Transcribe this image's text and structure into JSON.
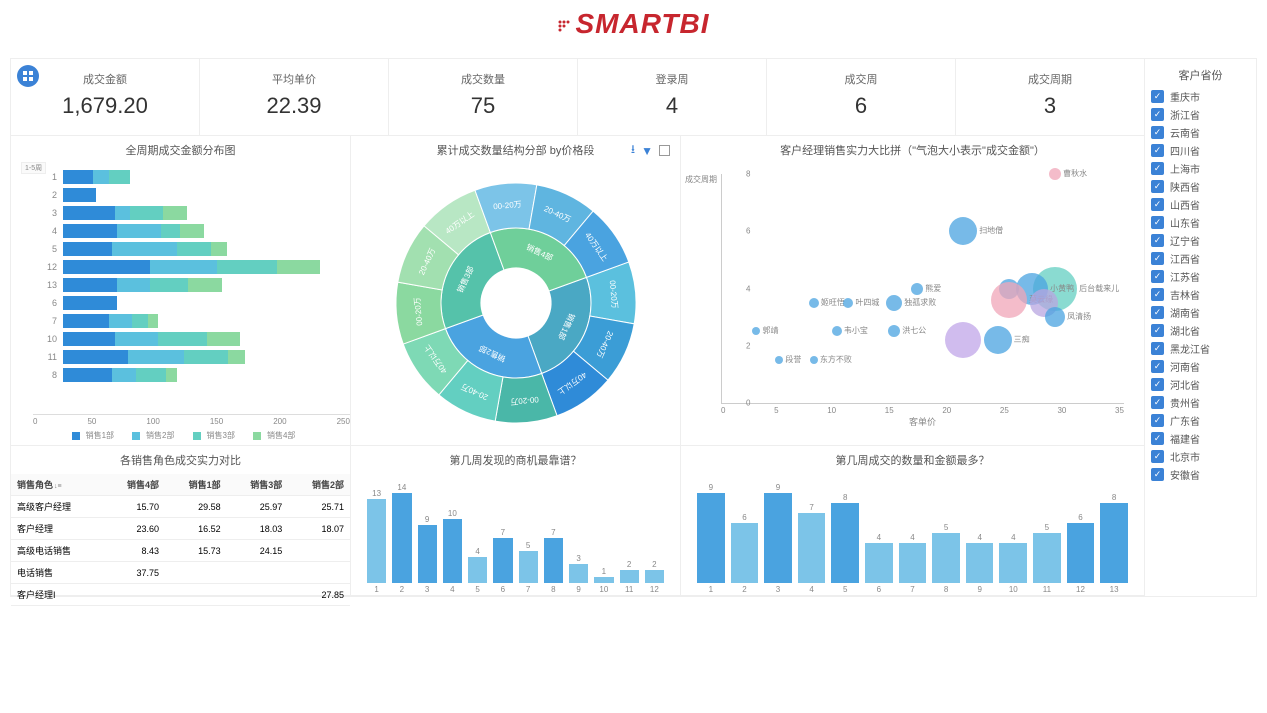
{
  "logo": {
    "text": "SMARTBI",
    "color": "#c7262e"
  },
  "kpis": [
    {
      "label": "成交金额",
      "value": "1,679.20"
    },
    {
      "label": "平均单价",
      "value": "22.39"
    },
    {
      "label": "成交数量",
      "value": "75"
    },
    {
      "label": "登录周",
      "value": "4"
    },
    {
      "label": "成交周",
      "value": "6"
    },
    {
      "label": "成交周期",
      "value": "3"
    }
  ],
  "sidebar": {
    "title": "客户省份",
    "items": [
      "重庆市",
      "浙江省",
      "云南省",
      "四川省",
      "上海市",
      "陕西省",
      "山西省",
      "山东省",
      "辽宁省",
      "江西省",
      "江苏省",
      "吉林省",
      "湖南省",
      "湖北省",
      "黑龙江省",
      "河南省",
      "河北省",
      "贵州省",
      "广东省",
      "福建省",
      "北京市",
      "安徽省"
    ]
  },
  "hbar": {
    "title": "全周期成交金额分布图",
    "badge": "1-5周",
    "max": 250,
    "xTicks": [
      "0",
      "50",
      "100",
      "150",
      "200",
      "250"
    ],
    "colors": [
      "#2f8bd8",
      "#5bc0de",
      "#63cfc1",
      "#8bd9a0"
    ],
    "legendLabels": [
      "销售1部",
      "销售2部",
      "销售3部",
      "销售4部"
    ],
    "rows": [
      {
        "label": "1",
        "segs": [
          28,
          14,
          20,
          0
        ]
      },
      {
        "label": "2",
        "segs": [
          30,
          0,
          0,
          0
        ]
      },
      {
        "label": "3",
        "segs": [
          48,
          14,
          30,
          22
        ]
      },
      {
        "label": "4",
        "segs": [
          50,
          40,
          18,
          22
        ]
      },
      {
        "label": "5",
        "segs": [
          45,
          60,
          32,
          14
        ]
      },
      {
        "label": "12",
        "segs": [
          80,
          62,
          55,
          40
        ]
      },
      {
        "label": "13",
        "segs": [
          50,
          30,
          35,
          32
        ]
      },
      {
        "label": "6",
        "segs": [
          50,
          0,
          0,
          0
        ]
      },
      {
        "label": "7",
        "segs": [
          42,
          22,
          14,
          10
        ]
      },
      {
        "label": "10",
        "segs": [
          48,
          40,
          45,
          30
        ]
      },
      {
        "label": "11",
        "segs": [
          60,
          52,
          40,
          16
        ]
      },
      {
        "label": "8",
        "segs": [
          45,
          22,
          28,
          10
        ]
      }
    ]
  },
  "sunburst": {
    "title": "累计成交数量结构分部 by价格段",
    "innerLabels": [
      "销售1部",
      "销售2部",
      "销售3部",
      "销售4部"
    ],
    "outerLabels": [
      "00-20万",
      "20-40万",
      "40万以上",
      "00-20万",
      "20-40万",
      "40万以上",
      "00-20万",
      "20-40万",
      "40万以上",
      "00-20万",
      "20-40万",
      "40万以上"
    ],
    "innerColors": [
      "#4aa8c4",
      "#4aa3e0",
      "#55c2aa",
      "#6fcf9a"
    ],
    "outerColors": [
      "#5bc0de",
      "#3b9dd6",
      "#2f8bd8",
      "#4ab7a8",
      "#63cfc1",
      "#7ed9b5",
      "#8bd9a0",
      "#a2e0b0",
      "#b8e7c4",
      "#7cc4e8",
      "#5fb5e0",
      "#4aa3e0"
    ]
  },
  "scatter": {
    "title": "客户经理销售实力大比拼（\"气泡大小表示\"成交金额\"）",
    "yLabel": "成交周期",
    "xLabel": "客单价",
    "yTicks": [
      0,
      2,
      4,
      6,
      8
    ],
    "xTicks": [
      0,
      5,
      10,
      15,
      20,
      25,
      30,
      35
    ],
    "xMax": 35,
    "yMax": 8,
    "bubbles": [
      {
        "x": 29,
        "y": 8,
        "r": 6,
        "c": "#f0a6b8",
        "l": "曹秋水"
      },
      {
        "x": 21,
        "y": 6,
        "r": 14,
        "c": "#4aa3e0",
        "l": "扫地僧"
      },
      {
        "x": 29,
        "y": 4,
        "r": 22,
        "c": "#63cfc1",
        "l": "后台载来儿"
      },
      {
        "x": 27,
        "y": 4,
        "r": 16,
        "c": "#4aa3e0",
        "l": "小黄鸭"
      },
      {
        "x": 25,
        "y": 4,
        "r": 10,
        "c": "#4aa3e0",
        "l": ""
      },
      {
        "x": 17,
        "y": 4,
        "r": 6,
        "c": "#4aa3e0",
        "l": "熊爱"
      },
      {
        "x": 8,
        "y": 3.5,
        "r": 5,
        "c": "#4aa3e0",
        "l": "姬旺悟"
      },
      {
        "x": 11,
        "y": 3.5,
        "r": 5,
        "c": "#4aa3e0",
        "l": "叶四城"
      },
      {
        "x": 15,
        "y": 3.5,
        "r": 8,
        "c": "#4aa3e0",
        "l": "独孤求败"
      },
      {
        "x": 25,
        "y": 3.6,
        "r": 18,
        "c": "#f0a6b8",
        "l": "莫云缘"
      },
      {
        "x": 28,
        "y": 3.5,
        "r": 14,
        "c": "#b8a6e0",
        "l": ""
      },
      {
        "x": 29,
        "y": 3,
        "r": 10,
        "c": "#4aa3e0",
        "l": "凤清扬"
      },
      {
        "x": 21,
        "y": 2.2,
        "r": 18,
        "c": "#c0a6e8",
        "l": ""
      },
      {
        "x": 24,
        "y": 2.2,
        "r": 14,
        "c": "#4aa3e0",
        "l": "三痴"
      },
      {
        "x": 15,
        "y": 2.5,
        "r": 6,
        "c": "#4aa3e0",
        "l": "洪七公"
      },
      {
        "x": 10,
        "y": 2.5,
        "r": 5,
        "c": "#4aa3e0",
        "l": "韦小宝"
      },
      {
        "x": 3,
        "y": 2.5,
        "r": 4,
        "c": "#4aa3e0",
        "l": "郭靖"
      },
      {
        "x": 5,
        "y": 1.5,
        "r": 4,
        "c": "#4aa3e0",
        "l": "段誉"
      },
      {
        "x": 8,
        "y": 1.5,
        "r": 4,
        "c": "#4aa3e0",
        "l": "东方不败"
      }
    ]
  },
  "table": {
    "title": "各销售角色成交实力对比",
    "columns": [
      "销售角色",
      "销售4部",
      "销售1部",
      "销售3部",
      "销售2部"
    ],
    "rows": [
      [
        "高级客户经理",
        "15.70",
        "29.58",
        "25.97",
        "25.71"
      ],
      [
        "客户经理",
        "23.60",
        "16.52",
        "18.03",
        "18.07"
      ],
      [
        "高级电话销售",
        "8.43",
        "15.73",
        "24.15",
        ""
      ],
      [
        "电话销售",
        "37.75",
        "",
        "",
        ""
      ],
      [
        "客户经理I",
        "",
        "",
        "",
        "27.85"
      ]
    ]
  },
  "vbar1": {
    "title": "第几周发现的商机最靠谱？",
    "max": 14,
    "bars": [
      {
        "v": 13,
        "c": "#7cc4e8"
      },
      {
        "v": 14,
        "c": "#4aa3e0"
      },
      {
        "v": 9,
        "c": "#4aa3e0"
      },
      {
        "v": 10,
        "c": "#4aa3e0"
      },
      {
        "v": 4,
        "c": "#7cc4e8"
      },
      {
        "v": 7,
        "c": "#4aa3e0"
      },
      {
        "v": 5,
        "c": "#7cc4e8"
      },
      {
        "v": 7,
        "c": "#4aa3e0"
      },
      {
        "v": 3,
        "c": "#7cc4e8"
      },
      {
        "v": 1,
        "c": "#7cc4e8"
      },
      {
        "v": 2,
        "c": "#7cc4e8"
      },
      {
        "v": 2,
        "c": "#7cc4e8"
      }
    ]
  },
  "vbar2": {
    "title": "第几周成交的数量和金额最多？",
    "max": 9,
    "bars": [
      {
        "v": 9,
        "c": "#4aa3e0"
      },
      {
        "v": 6,
        "c": "#7cc4e8"
      },
      {
        "v": 9,
        "c": "#4aa3e0"
      },
      {
        "v": 7,
        "c": "#7cc4e8"
      },
      {
        "v": 8,
        "c": "#4aa3e0"
      },
      {
        "v": 4,
        "c": "#7cc4e8"
      },
      {
        "v": 4,
        "c": "#7cc4e8"
      },
      {
        "v": 5,
        "c": "#7cc4e8"
      },
      {
        "v": 4,
        "c": "#7cc4e8"
      },
      {
        "v": 4,
        "c": "#7cc4e8"
      },
      {
        "v": 5,
        "c": "#7cc4e8"
      },
      {
        "v": 6,
        "c": "#4aa3e0"
      },
      {
        "v": 8,
        "c": "#4aa3e0"
      }
    ]
  }
}
